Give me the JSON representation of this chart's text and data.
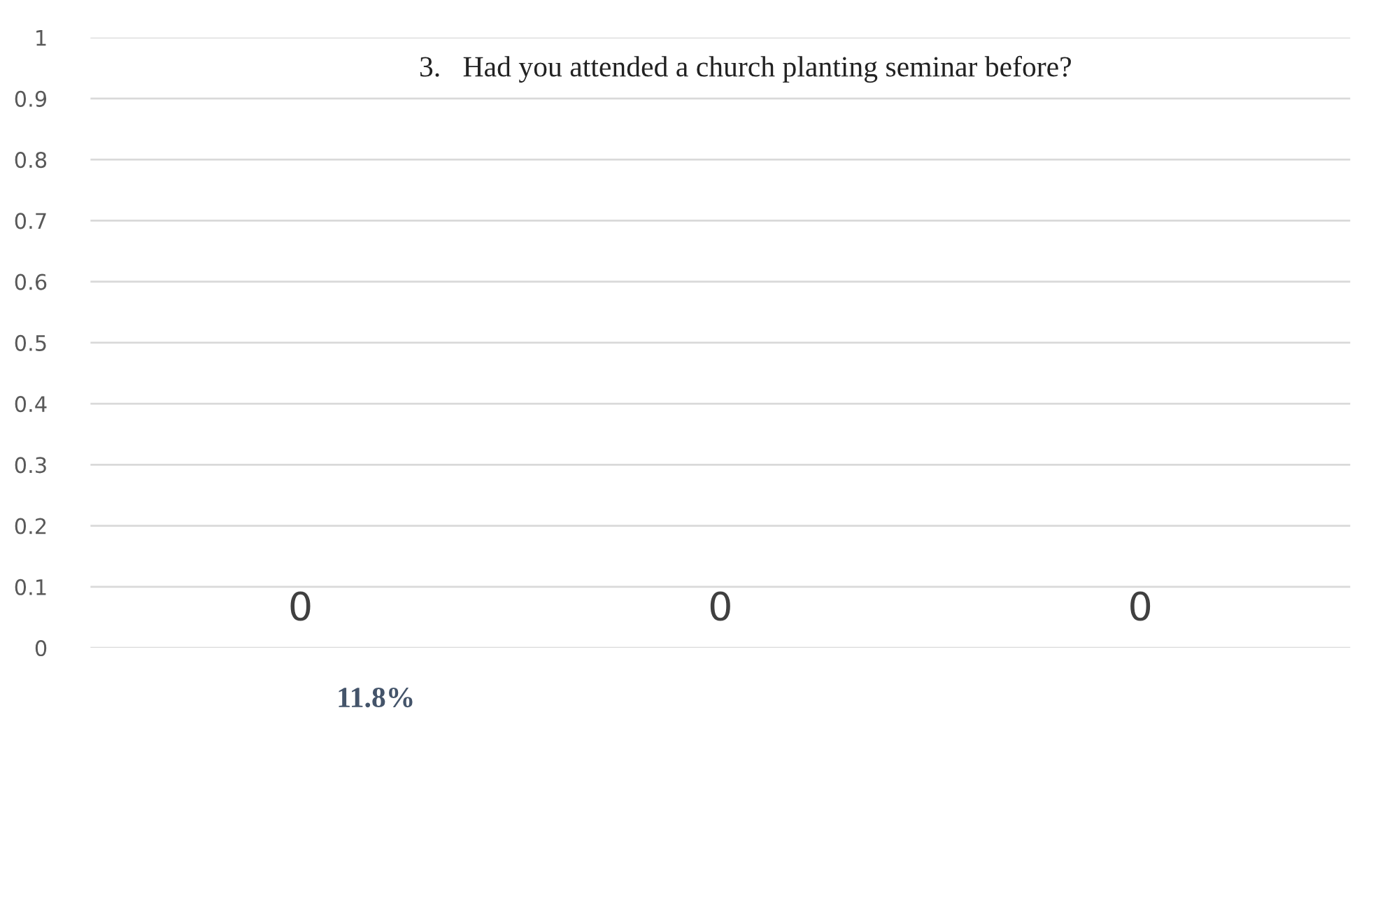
{
  "chart_data": {
    "type": "bar",
    "title": "3.   Had you attended a church planting seminar before?",
    "categories": [
      null,
      null,
      null
    ],
    "values": [
      0,
      0,
      0
    ],
    "ylim": [
      0,
      1
    ],
    "yticks": [
      0,
      0.1,
      0.2,
      0.3,
      0.4,
      0.5,
      0.6,
      0.7,
      0.8,
      0.9,
      1
    ],
    "grid": "y",
    "data_labels": true,
    "annotations": [
      "11.8%"
    ]
  }
}
